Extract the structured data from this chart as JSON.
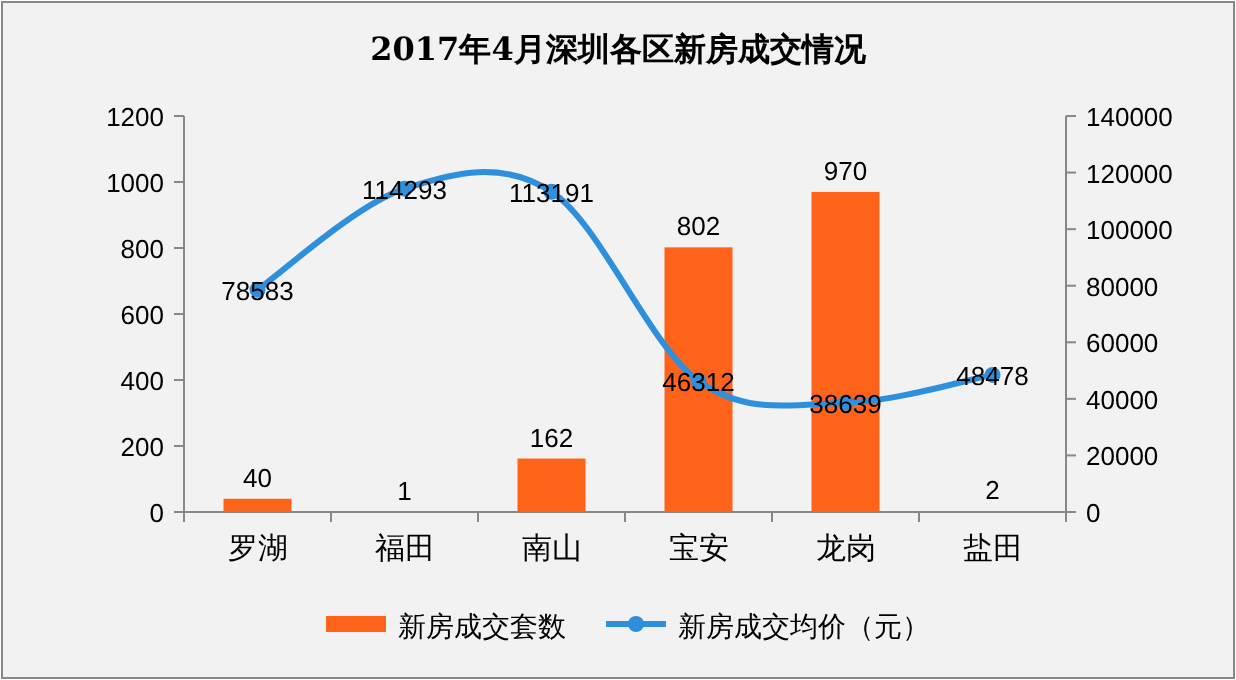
{
  "chart_data": {
    "type": "bar",
    "title": "2017年4月深圳各区新房成交情况",
    "categories": [
      "罗湖",
      "福田",
      "南山",
      "宝安",
      "龙岗",
      "盐田"
    ],
    "series": [
      {
        "name": "新房成交套数",
        "color": "#ff6319",
        "values": [
          40,
          1,
          162,
          802,
          970,
          2
        ]
      },
      {
        "name": "新房成交均价（元）",
        "type": "line",
        "axis": "y2",
        "marker": "circle",
        "color": "#2e8fdc",
        "values": [
          78583,
          114293,
          113191,
          46312,
          38639,
          48478
        ]
      }
    ],
    "ylim": [
      0,
      1200
    ],
    "yticks": [
      0,
      200,
      400,
      600,
      800,
      1000,
      1200
    ],
    "y2lim": [
      0,
      140000
    ],
    "y2ticks": [
      0,
      20000,
      40000,
      60000,
      80000,
      100000,
      120000,
      140000
    ],
    "data_labels": true,
    "legend": "bottom",
    "grid": false
  }
}
